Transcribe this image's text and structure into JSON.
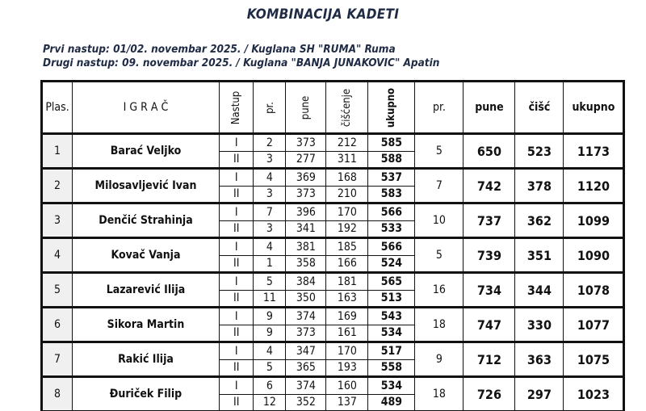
{
  "title": "KOMBINACIJA KADETI",
  "subtitle1": "Prvi nastup: 01/02. novembar 2025. / Kuglana SH \"RUMA\"  Ruma",
  "subtitle2": "Drugi nastup: 09. novembar 2025. / Kuglana \"BANJA JUNAKOVIC\"  Apatin",
  "headers": [
    "Plas.",
    "I G R A Č",
    "Nastup",
    "pr.",
    "pune",
    "čišćenje",
    "ukupno",
    "pr.",
    "pune",
    "čišć",
    "ukupno"
  ],
  "rows": [
    {
      "plas": "1",
      "name": "Barać Veljko",
      "runs": [
        {
          "n": "I",
          "pr": "2",
          "pune": "373",
          "cis": "212",
          "uk": "585"
        },
        {
          "n": "II",
          "pr": "3",
          "pune": "277",
          "cis": "311",
          "uk": "588"
        }
      ],
      "pr": "5",
      "pune": "650",
      "cis": "523",
      "uk": "1173"
    },
    {
      "plas": "2",
      "name": "Milosavljević Ivan",
      "runs": [
        {
          "n": "I",
          "pr": "4",
          "pune": "369",
          "cis": "168",
          "uk": "537"
        },
        {
          "n": "II",
          "pr": "3",
          "pune": "373",
          "cis": "210",
          "uk": "583"
        }
      ],
      "pr": "7",
      "pune": "742",
      "cis": "378",
      "uk": "1120"
    },
    {
      "plas": "3",
      "name": "Denčić Strahinja",
      "runs": [
        {
          "n": "I",
          "pr": "7",
          "pune": "396",
          "cis": "170",
          "uk": "566"
        },
        {
          "n": "II",
          "pr": "3",
          "pune": "341",
          "cis": "192",
          "uk": "533"
        }
      ],
      "pr": "10",
      "pune": "737",
      "cis": "362",
      "uk": "1099"
    },
    {
      "plas": "4",
      "name": "Kovač Vanja",
      "runs": [
        {
          "n": "I",
          "pr": "4",
          "pune": "381",
          "cis": "185",
          "uk": "566"
        },
        {
          "n": "II",
          "pr": "1",
          "pune": "358",
          "cis": "166",
          "uk": "524"
        }
      ],
      "pr": "5",
      "pune": "739",
      "cis": "351",
      "uk": "1090"
    },
    {
      "plas": "5",
      "name": "Lazarević Ilija",
      "runs": [
        {
          "n": "I",
          "pr": "5",
          "pune": "384",
          "cis": "181",
          "uk": "565"
        },
        {
          "n": "II",
          "pr": "11",
          "pune": "350",
          "cis": "163",
          "uk": "513"
        }
      ],
      "pr": "16",
      "pune": "734",
      "cis": "344",
      "uk": "1078"
    },
    {
      "plas": "6",
      "name": "Sikora Martin",
      "runs": [
        {
          "n": "I",
          "pr": "9",
          "pune": "374",
          "cis": "169",
          "uk": "543"
        },
        {
          "n": "II",
          "pr": "9",
          "pune": "373",
          "cis": "161",
          "uk": "534"
        }
      ],
      "pr": "18",
      "pune": "747",
      "cis": "330",
      "uk": "1077"
    },
    {
      "plas": "7",
      "name": "Rakić Ilija",
      "runs": [
        {
          "n": "I",
          "pr": "4",
          "pune": "347",
          "cis": "170",
          "uk": "517"
        },
        {
          "n": "II",
          "pr": "5",
          "pune": "365",
          "cis": "193",
          "uk": "558"
        }
      ],
      "pr": "9",
      "pune": "712",
      "cis": "363",
      "uk": "1075"
    },
    {
      "plas": "8",
      "name": "Đuriček Filip",
      "runs": [
        {
          "n": "I",
          "pr": "6",
          "pune": "374",
          "cis": "160",
          "uk": "534"
        },
        {
          "n": "II",
          "pr": "12",
          "pune": "352",
          "cis": "137",
          "uk": "489"
        }
      ],
      "pr": "18",
      "pune": "726",
      "cis": "297",
      "uk": "1023"
    }
  ]
}
